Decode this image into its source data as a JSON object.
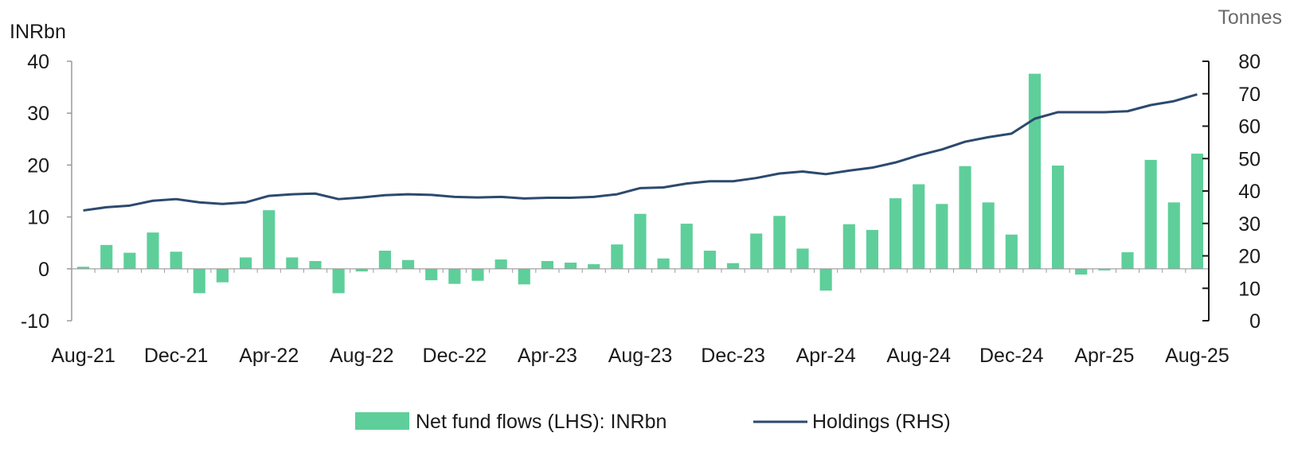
{
  "chart_data": {
    "type": "bar",
    "left_axis_unit": "INRbn",
    "right_axis_unit": "Tonnes",
    "left_ylim": [
      -10,
      40
    ],
    "left_ticks": [
      "40",
      "30",
      "20",
      "10",
      "0",
      "-10"
    ],
    "right_ylim": [
      0,
      80
    ],
    "right_ticks": [
      "80",
      "70",
      "60",
      "50",
      "40",
      "30",
      "20",
      "10",
      "0"
    ],
    "x_tick_labels": [
      "Aug-21",
      "Dec-21",
      "Apr-22",
      "Aug-22",
      "Dec-22",
      "Apr-23",
      "Aug-23",
      "Dec-23",
      "Apr-24",
      "Aug-24",
      "Dec-24",
      "Apr-25",
      "Aug-25"
    ],
    "legend_position": "bottom",
    "grid": false,
    "colors": {
      "bars": "#5ecf9a",
      "line": "#2c4a6e",
      "axis": "#1a1a1a"
    },
    "series": [
      {
        "name": "Net fund flows (LHS): INRbn",
        "type": "bar",
        "axis": "left",
        "values": [
          0.4,
          4.6,
          3.1,
          7.0,
          3.3,
          -4.7,
          -2.6,
          2.2,
          11.3,
          2.2,
          1.5,
          -4.7,
          -0.5,
          3.5,
          1.7,
          -2.2,
          -2.9,
          -2.3,
          1.8,
          -3.0,
          1.5,
          1.2,
          0.9,
          4.7,
          10.6,
          2.0,
          8.7,
          3.5,
          1.1,
          6.8,
          10.2,
          3.9,
          -4.2,
          8.6,
          7.5,
          13.6,
          16.3,
          12.5,
          19.8,
          12.8,
          6.6,
          37.6,
          19.9,
          -1.1,
          -0.3,
          3.2,
          21.0,
          12.8,
          22.2
        ]
      },
      {
        "name": "Holdings (RHS)",
        "type": "line",
        "axis": "right",
        "values": [
          34.0,
          35.0,
          35.5,
          37.0,
          37.5,
          36.5,
          36.0,
          36.5,
          38.5,
          39.0,
          39.2,
          37.5,
          38.0,
          38.7,
          39.0,
          38.8,
          38.2,
          38.0,
          38.2,
          37.7,
          37.9,
          37.9,
          38.2,
          39.0,
          40.9,
          41.1,
          42.3,
          43.0,
          43.0,
          44.0,
          45.4,
          46.0,
          45.2,
          46.3,
          47.2,
          48.8,
          51.0,
          52.8,
          55.2,
          56.6,
          57.7,
          62.3,
          64.3,
          64.3,
          64.3,
          64.6,
          66.5,
          67.7,
          69.8
        ]
      }
    ]
  }
}
